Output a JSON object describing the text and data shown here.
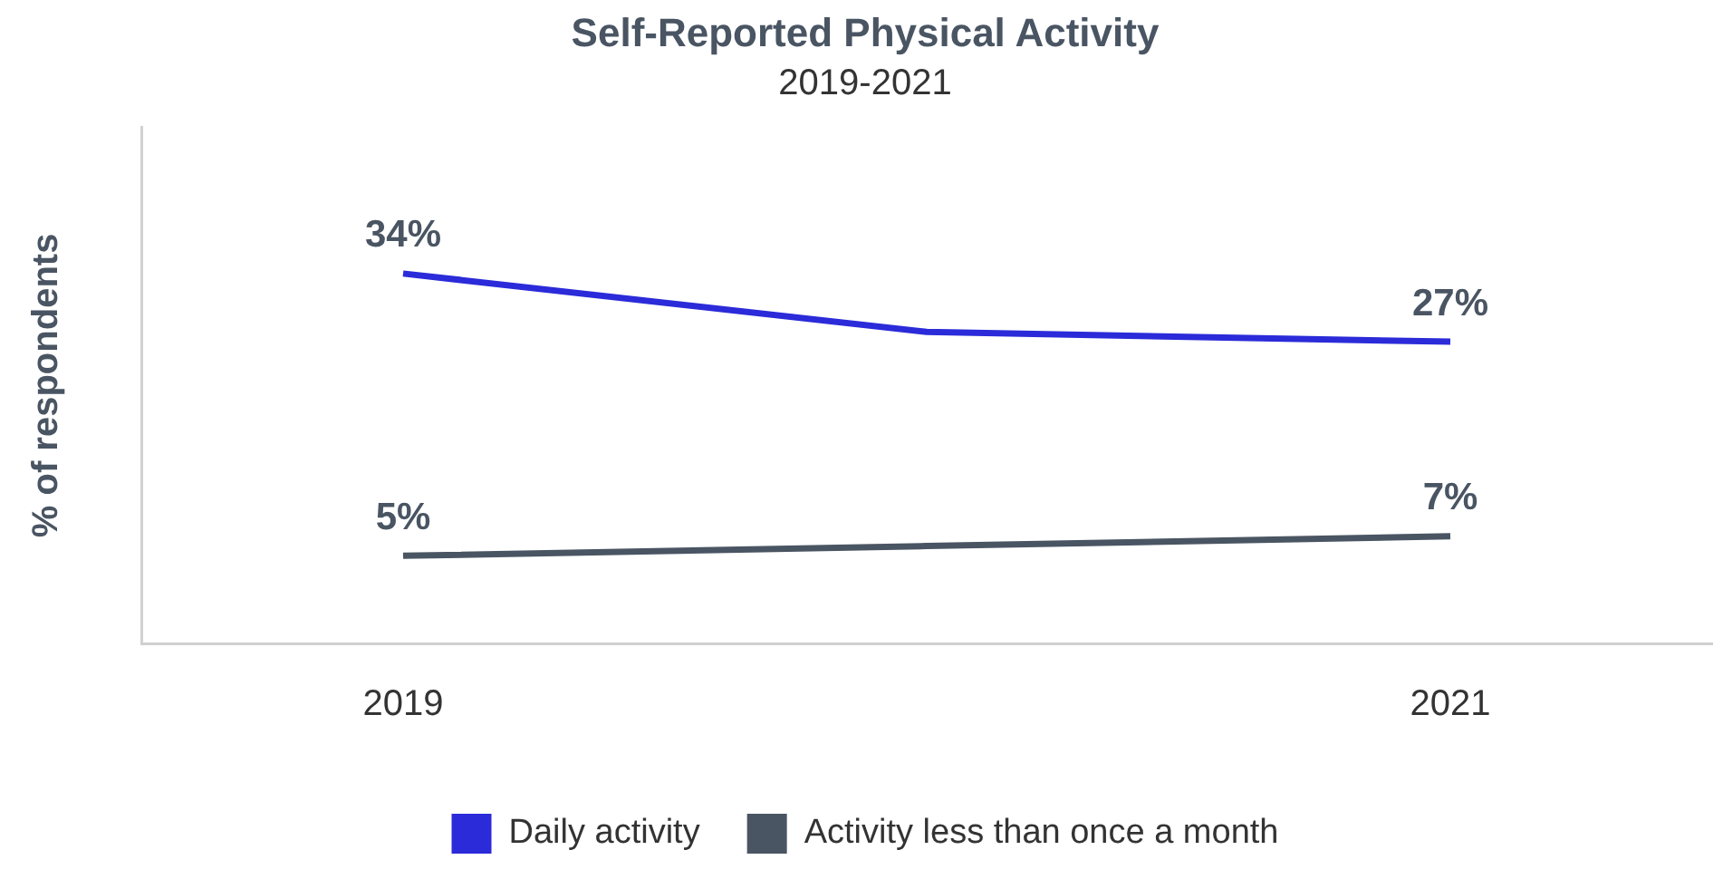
{
  "chart_data": {
    "type": "line",
    "title": "Self-Reported Physical Activity",
    "subtitle": "2019-2021",
    "ylabel": "% of respondents",
    "categories": [
      "2019",
      null,
      "2021"
    ],
    "series": [
      {
        "name": "Daily activity",
        "color": "#2b2bd9",
        "values": [
          34,
          28,
          27
        ],
        "value_labels": [
          "34%",
          null,
          "27%"
        ]
      },
      {
        "name": "Activity less than once a month",
        "color": "#4a5563",
        "values": [
          5,
          6,
          7
        ],
        "value_labels": [
          "5%",
          null,
          "7%"
        ]
      }
    ],
    "ylim": [
      -4,
      49
    ],
    "tick_labels": "x",
    "grid": false,
    "legend": "bottom",
    "marker": "none",
    "line_style": "solid"
  }
}
